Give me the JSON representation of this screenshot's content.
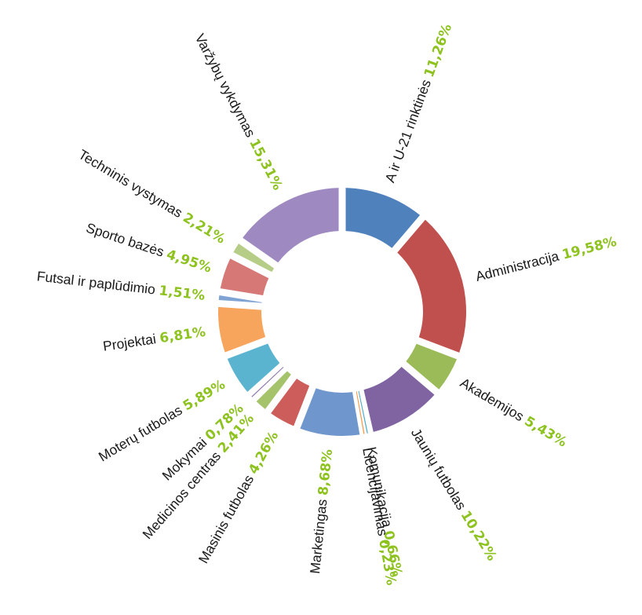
{
  "chart_data": {
    "type": "pie",
    "donut": true,
    "start": "top",
    "direction": "clockwise",
    "value_color": "#8dc21f",
    "slices": [
      {
        "label": "A ir U-21 rinktinės",
        "value": 11.26,
        "display": "11,26%",
        "color": "#4f81bd"
      },
      {
        "label": "Administracija",
        "value": 19.58,
        "display": "19,58%",
        "color": "#c0504d"
      },
      {
        "label": "Akademijos",
        "value": 5.43,
        "display": "5,43%",
        "color": "#9bbb59"
      },
      {
        "label": "Jaunių futbolas",
        "value": 10.22,
        "display": "10,22%",
        "color": "#8064a2"
      },
      {
        "label": "Komunikacija",
        "value": 0.66,
        "display": "0,66%",
        "color": "#4bacc6"
      },
      {
        "label": "Licencijavimas",
        "value": 0.23,
        "display": "0,23%",
        "color": "#f79646"
      },
      {
        "label": "Marketingas",
        "value": 8.68,
        "display": "8,68%",
        "color": "#6f97cd"
      },
      {
        "label": "Masinis futbolas",
        "value": 4.26,
        "display": "4,26%",
        "color": "#cd5d5a"
      },
      {
        "label": "Medicinos centras",
        "value": 2.41,
        "display": "2,41%",
        "color": "#a5c36b"
      },
      {
        "label": "Mokymai",
        "value": 0.78,
        "display": "0,78%",
        "color": "#8f77ae"
      },
      {
        "label": "Moterų futbolas",
        "value": 5.89,
        "display": "5,89%",
        "color": "#5bb4cf"
      },
      {
        "label": "Projektai",
        "value": 6.81,
        "display": "6,81%",
        "color": "#f7a45c"
      },
      {
        "label": "Futsal ir paplūdimio",
        "value": 1.51,
        "display": "1,51%",
        "color": "#7fa3d3"
      },
      {
        "label": "Sporto bazės",
        "value": 4.95,
        "display": "4,95%",
        "color": "#d67875"
      },
      {
        "label": "Techninis vystymas",
        "value": 2.21,
        "display": "2,21%",
        "color": "#b5cd87"
      },
      {
        "label": "Varžybų vykdymas",
        "value": 15.31,
        "display": "15,31%",
        "color": "#9e8ac1"
      }
    ]
  }
}
